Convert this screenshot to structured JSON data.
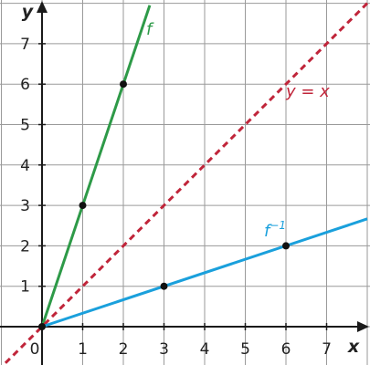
{
  "chart_data": {
    "type": "line",
    "xlabel": "x",
    "ylabel": "y",
    "xlim": [
      -1,
      7.9
    ],
    "ylim": [
      -0.9,
      7.9
    ],
    "x_ticks": [
      1,
      2,
      3,
      4,
      5,
      6,
      7
    ],
    "y_ticks": [
      1,
      2,
      3,
      4,
      5,
      6,
      7
    ],
    "origin_label": "0",
    "grid": true,
    "series": [
      {
        "name": "f",
        "label_sup": "",
        "color": "#2e9a48",
        "dash": "solid",
        "points": [
          [
            0,
            0
          ],
          [
            1,
            3
          ],
          [
            2,
            6
          ]
        ],
        "marked": [
          [
            1,
            3
          ],
          [
            2,
            6
          ]
        ],
        "line_from": [
          0,
          0
        ],
        "line_to": [
          2.65,
          7.95
        ]
      },
      {
        "name": "y = x",
        "label_sup": "",
        "color": "#c0253a",
        "dash": "dashed",
        "points": [],
        "marked": [],
        "line_from": [
          -0.9,
          -0.9
        ],
        "line_to": [
          8,
          8
        ]
      },
      {
        "name": "f",
        "label_sup": "−1",
        "color": "#1aa0dc",
        "dash": "solid",
        "points": [
          [
            0,
            0
          ],
          [
            3,
            1
          ],
          [
            6,
            2
          ]
        ],
        "marked": [
          [
            3,
            1
          ],
          [
            6,
            2
          ]
        ],
        "line_from": [
          0,
          0
        ],
        "line_to": [
          8,
          2.667
        ]
      }
    ]
  }
}
